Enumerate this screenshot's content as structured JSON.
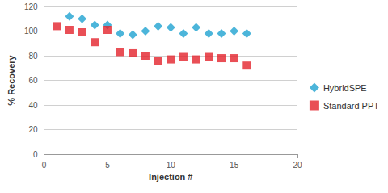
{
  "chart_data": {
    "type": "scatter",
    "x_label": "Injection #",
    "y_label": "% Recovery",
    "x": [
      1,
      2,
      3,
      4,
      5,
      6,
      7,
      8,
      9,
      10,
      11,
      12,
      13,
      14,
      15,
      16
    ],
    "series": [
      {
        "name": "HybridSPE",
        "color": "#1fa3d1",
        "marker": "diamond",
        "values": [
          null,
          112,
          110,
          105,
          105,
          98,
          97,
          100,
          104,
          103,
          98,
          103,
          98,
          98,
          100,
          98
        ]
      },
      {
        "name": "Standard PPT",
        "color": "#e3232c",
        "marker": "square",
        "values": [
          104,
          101,
          99,
          91,
          101,
          83,
          82,
          80,
          76,
          77,
          79,
          77,
          79,
          78,
          78,
          72
        ]
      }
    ],
    "xlim": [
      0,
      20
    ],
    "xticks": [
      0,
      5,
      10,
      15,
      20
    ],
    "ylim": [
      0,
      120
    ],
    "yticks": [
      0,
      20,
      40,
      60,
      80,
      100,
      120
    ],
    "grid": true,
    "legend": "right"
  }
}
